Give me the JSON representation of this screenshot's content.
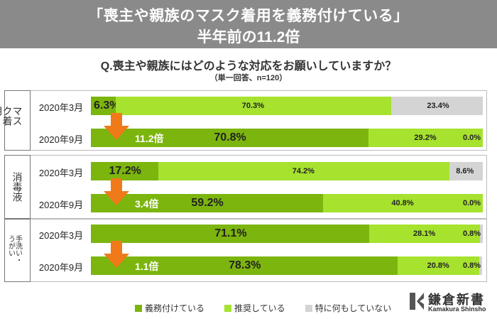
{
  "header": {
    "title_line1": "「喪主や親族のマスク着用を義務付けている」",
    "title_line2": "半年前の11.2倍"
  },
  "question": {
    "text": "Q.喪主や親族にはどのような対応をお願いしていますか？",
    "note": "（単一回答、n=120）"
  },
  "legend": {
    "required": "義務付けている",
    "recommended": "推奨している",
    "none": "特に何もしていない"
  },
  "colors": {
    "required": "#7cb50e",
    "recommended": "#a6e22e",
    "none": "#d4d4d4",
    "arrow": "#f07a1a",
    "banner": "#8a8a8a"
  },
  "logo": {
    "jp": "鎌倉新書",
    "en": "Kamakura Shinsho"
  },
  "chart_data": {
    "type": "bar",
    "stacked": true,
    "orientation": "horizontal",
    "title": "Q.喪主や親族にはどのような対応をお願いしていますか？",
    "subtitle": "（単一回答、n=120）",
    "series_names": [
      "義務付けている",
      "推奨している",
      "特に何もしていない"
    ],
    "groups": [
      {
        "name": "マスク着用",
        "rows": [
          {
            "period": "2020年3月",
            "values": [
              6.3,
              70.3,
              23.4
            ],
            "labels": [
              "6.3%",
              "70.3%",
              "23.4%"
            ]
          },
          {
            "period": "2020年9月",
            "values": [
              70.8,
              29.2,
              0.0
            ],
            "labels": [
              "70.8%",
              "29.2%",
              "0.0%"
            ],
            "multiplier": "11.2倍"
          }
        ]
      },
      {
        "name": "消毒液",
        "rows": [
          {
            "period": "2020年3月",
            "values": [
              17.2,
              74.2,
              8.6
            ],
            "labels": [
              "17.2%",
              "74.2%",
              "8.6%"
            ]
          },
          {
            "period": "2020年9月",
            "values": [
              59.2,
              40.8,
              0.0
            ],
            "labels": [
              "59.2%",
              "40.8%",
              "0.0%"
            ],
            "multiplier": "3.4倍"
          }
        ]
      },
      {
        "name": "手洗い・うがい",
        "rows": [
          {
            "period": "2020年3月",
            "values": [
              71.1,
              28.1,
              0.8
            ],
            "labels": [
              "71.1%",
              "28.1%",
              "0.8%"
            ]
          },
          {
            "period": "2020年9月",
            "values": [
              78.3,
              20.8,
              0.8
            ],
            "labels": [
              "78.3%",
              "20.8%",
              "0.8%"
            ],
            "multiplier": "1.1倍"
          }
        ]
      }
    ],
    "xlim": [
      0,
      100
    ]
  }
}
